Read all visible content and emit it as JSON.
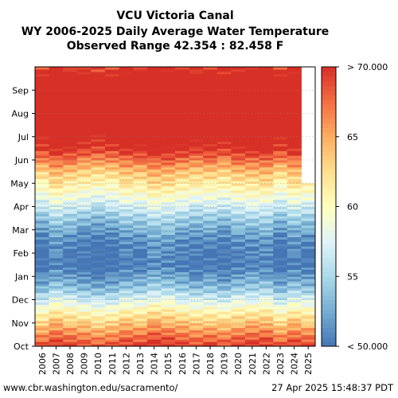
{
  "title_lines": [
    "VCU Victoria Canal",
    "WY 2006-2025 Daily Average Water Temperature",
    "Observed Range 42.354 : 82.458 F"
  ],
  "footer": {
    "source_url": "www.cbr.washington.edu/sacramento/",
    "timestamp": "27 Apr 2025 15:48:37 PDT"
  },
  "chart_data": {
    "type": "heatmap",
    "title": "VCU Victoria Canal WY 2006-2025 Daily Average Water Temperature",
    "x": [
      "2006",
      "2007",
      "2008",
      "2009",
      "2010",
      "2011",
      "2012",
      "2013",
      "2014",
      "2015",
      "2016",
      "2017",
      "2018",
      "2019",
      "2020",
      "2021",
      "2022",
      "2023",
      "2024",
      "2025"
    ],
    "y_months": [
      "Oct",
      "Nov",
      "Dec",
      "Jan",
      "Feb",
      "Mar",
      "Apr",
      "May",
      "Jun",
      "Jul",
      "Aug",
      "Sep"
    ],
    "colorbar": {
      "min": 50,
      "max": 70,
      "ticks": [
        "< 50.000",
        "55",
        "60",
        "65",
        "> 70.000"
      ],
      "colors": [
        "#4575b4",
        "#74add1",
        "#abd9e9",
        "#e0f3f8",
        "#ffffbf",
        "#fee090",
        "#fdae61",
        "#f46d43",
        "#d73027"
      ]
    },
    "monthly_typical_F": {
      "Oct": 66.5,
      "Nov": 60.5,
      "Dec": 53.5,
      "Jan": 49.5,
      "Feb": 50.5,
      "Mar": 54.0,
      "Apr": 59.0,
      "May": 63.5,
      "Jun": 70.0,
      "Jul": 73.0,
      "Aug": 73.0,
      "Sep": 72.0
    },
    "year_offset_F": {
      "2006": -0.5,
      "2007": 1.0,
      "2008": 0.3,
      "2009": -0.3,
      "2010": -0.8,
      "2011": -0.5,
      "2012": 0.6,
      "2013": 0.4,
      "2014": 1.5,
      "2015": 1.2,
      "2016": 0.5,
      "2017": 0.0,
      "2018": 0.2,
      "2019": -0.3,
      "2020": 0.6,
      "2021": 0.8,
      "2022": 1.0,
      "2023": -0.6,
      "2024": 0.7,
      "2025": 0.2
    },
    "data_end": "Apr 2025",
    "observed_range": [
      42.354,
      82.458
    ],
    "units": "F"
  }
}
